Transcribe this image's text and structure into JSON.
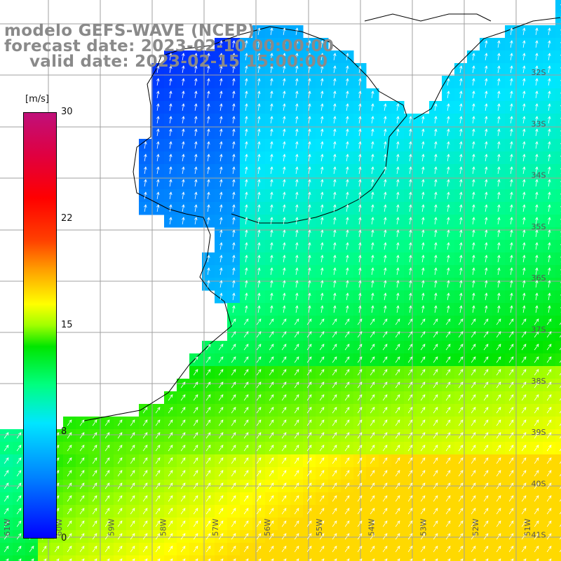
{
  "title": {
    "model": "modelo GEFS-WAVE (NCEP)",
    "forecast": "forecast date: 2023-02-10 00:00:00",
    "valid": "valid date: 2023-02-15 15:00:00"
  },
  "colorbar": {
    "unit": "[m/s]",
    "ticks": [
      "30",
      "22",
      "15",
      "8",
      "0"
    ],
    "tick_values": [
      30,
      22,
      15,
      8,
      0
    ],
    "range": [
      0,
      30
    ],
    "colors": [
      "#0000ff",
      "#0080ff",
      "#00e6ff",
      "#00ff80",
      "#00e600",
      "#ffff00",
      "#ff4000",
      "#ff0000",
      "#c0107a"
    ]
  },
  "lon_labels": [
    "61W",
    "60W",
    "59W",
    "58W",
    "57W",
    "56W",
    "55W",
    "54W",
    "53W",
    "52W",
    "51W"
  ],
  "lat_labels": [
    "32S",
    "33S",
    "34S",
    "35S",
    "36S",
    "37S",
    "38S",
    "39S",
    "40S",
    "41S"
  ],
  "colors": {
    "land": "#ffffff",
    "grid": "#a0a0a0",
    "coast": "#000000",
    "arrows": "#ffffff",
    "title": "#8a8a8a"
  }
}
